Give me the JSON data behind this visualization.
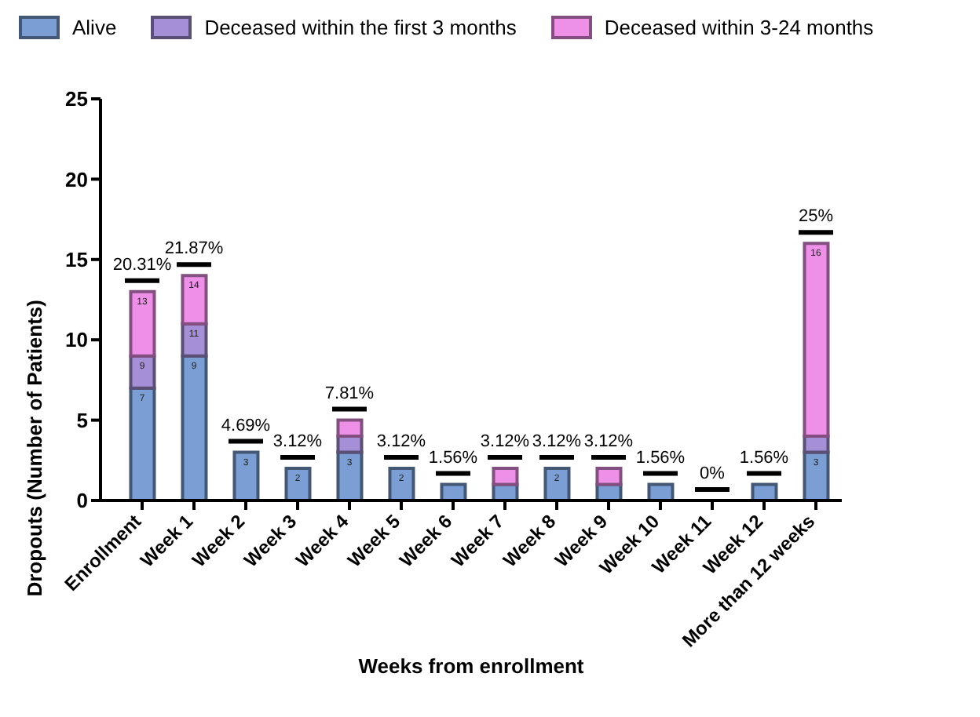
{
  "chart_data": {
    "type": "bar",
    "stacked": true,
    "xlabel": "Weeks from enrollment",
    "ylabel": "Dropouts (Number of Patients)",
    "categories": [
      "Enrollment",
      "Week 1",
      "Week 2",
      "Week 3",
      "Week 4",
      "Week 5",
      "Week 6",
      "Week 7",
      "Week 8",
      "Week 9",
      "Week 10",
      "Week 11",
      "Week 12",
      "More than 12 weeks"
    ],
    "series": [
      {
        "name": "Alive",
        "color": "#7b9fd4",
        "values": [
          7,
          9,
          3,
          2,
          3,
          2,
          1,
          1,
          2,
          1,
          1,
          0,
          1,
          3
        ]
      },
      {
        "name": "Deceased within the first 3 months",
        "color": "#a58fd6",
        "values": [
          2,
          2,
          0,
          0,
          1,
          0,
          0,
          0,
          0,
          0,
          0,
          0,
          0,
          1
        ]
      },
      {
        "name": "Deceased within 3-24 months",
        "color": "#ee90e8",
        "values": [
          4,
          3,
          0,
          0,
          1,
          0,
          0,
          1,
          0,
          1,
          0,
          0,
          0,
          12
        ]
      }
    ],
    "annotations": [
      {
        "text": "20.31%",
        "x": "Enrollment",
        "y": 13
      },
      {
        "text": "21.87%",
        "x": "Week 1",
        "y": 14
      },
      {
        "text": "4.69%",
        "x": "Week 2",
        "y": 3
      },
      {
        "text": "3.12%",
        "x": "Week 3",
        "y": 2
      },
      {
        "text": "7.81%",
        "x": "Week 4",
        "y": 5
      },
      {
        "text": "3.12%",
        "x": "Week 5",
        "y": 2
      },
      {
        "text": "1.56%",
        "x": "Week 6",
        "y": 1
      },
      {
        "text": "3.12%",
        "x": "Week 7",
        "y": 2
      },
      {
        "text": "3.12%",
        "x": "Week 8",
        "y": 2
      },
      {
        "text": "3.12%",
        "x": "Week 9",
        "y": 2
      },
      {
        "text": "1.56%",
        "x": "Week 10",
        "y": 1
      },
      {
        "text": "0%",
        "x": "Week 11",
        "y": 0
      },
      {
        "text": "1.56%",
        "x": "Week 12",
        "y": 1
      },
      {
        "text": "25%",
        "x": "More than 12 weeks",
        "y": 16
      },
      {
        "text": "7",
        "x": "Enrollment",
        "y": 7
      },
      {
        "text": "9",
        "x": "Enrollment",
        "y": 9
      },
      {
        "text": "13",
        "x": "Enrollment",
        "y": 13
      },
      {
        "text": "9",
        "x": "Week 1",
        "y": 9
      },
      {
        "text": "11",
        "x": "Week 1",
        "y": 11
      },
      {
        "text": "14",
        "x": "Week 1",
        "y": 14
      },
      {
        "text": "3",
        "x": "Week 2",
        "y": 3
      },
      {
        "text": "2",
        "x": "Week 3",
        "y": 2
      },
      {
        "text": "3",
        "x": "Week 4",
        "y": 3
      },
      {
        "text": "2",
        "x": "Week 5",
        "y": 2
      },
      {
        "text": "2",
        "x": "Week 8",
        "y": 2
      },
      {
        "text": "3",
        "x": "More than 12 weeks",
        "y": 3
      },
      {
        "text": "16",
        "x": "More than 12 weeks",
        "y": 16
      }
    ],
    "ylim": [
      0,
      25
    ],
    "yticks": [
      0,
      5,
      10,
      15,
      20,
      25
    ],
    "grid": false,
    "legend": "top"
  }
}
